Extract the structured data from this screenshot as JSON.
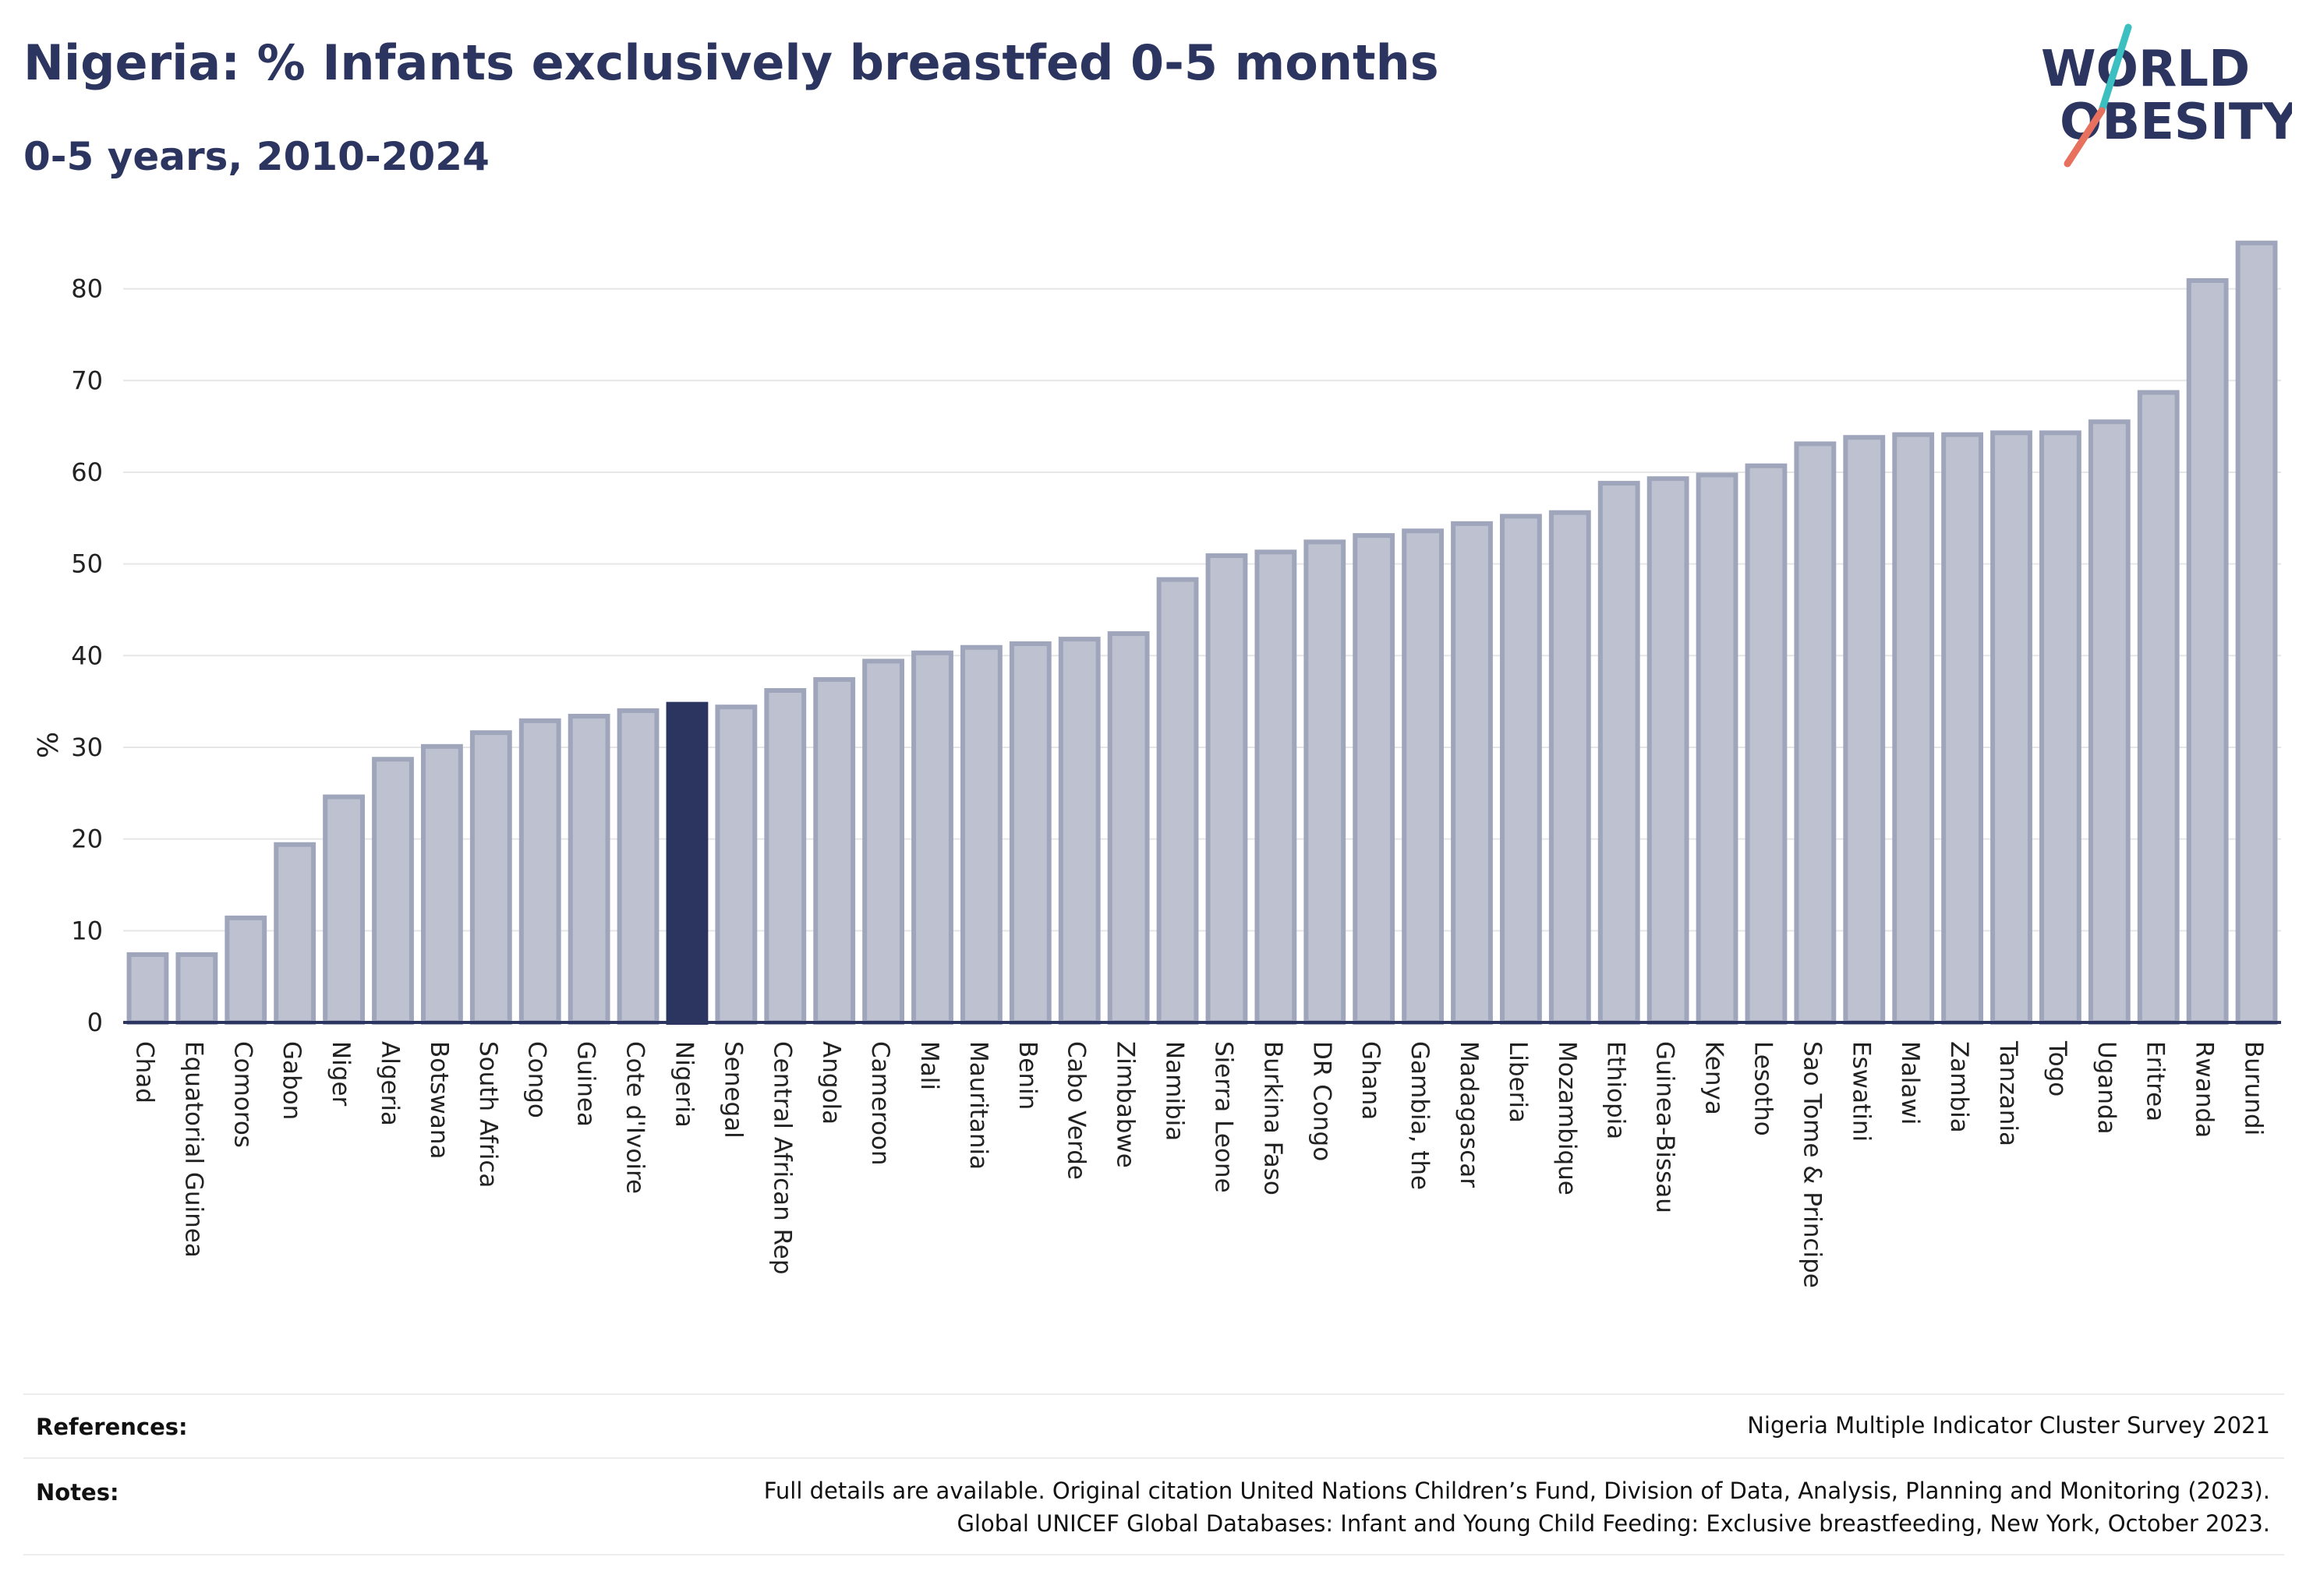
{
  "header": {
    "title": "Nigeria: % Infants exclusively breastfed 0-5 months",
    "subtitle": "0-5 years, 2010-2024"
  },
  "logo": {
    "line1": "WORLD",
    "line2": "OBESITY",
    "colors": {
      "text": "#2b3560",
      "slash_teal": "#3bbfc1",
      "slash_coral": "#e8705f"
    }
  },
  "footer": {
    "references_label": "References:",
    "references_value": "Nigeria Multiple Indicator Cluster Survey 2021",
    "notes_label": "Notes:",
    "notes_line1": "Full details are available. Original citation United Nations Children’s Fund, Division of Data, Analysis, Planning and Monitoring (2023).",
    "notes_line2": "Global UNICEF Global Databases: Infant and Young Child Feeding: Exclusive breastfeeding, New York, October 2023."
  },
  "colors": {
    "bar_fill": "#bec2d0",
    "bar_stroke": "#9fa5ba",
    "highlight": "#2b3560",
    "grid": "#e6e6e6",
    "axis": "#2b3560"
  },
  "chart_data": {
    "type": "bar",
    "ylabel": "%",
    "xlabel": "",
    "ylim": [
      0,
      86
    ],
    "yticks": [
      0,
      10,
      20,
      30,
      40,
      50,
      60,
      70,
      80
    ],
    "grid": true,
    "highlight_category": "Nigeria",
    "categories": [
      "Chad",
      "Equatorial Guinea",
      "Comoros",
      "Gabon",
      "Niger",
      "Algeria",
      "Botswana",
      "South Africa",
      "Congo",
      "Guinea",
      "Cote d'Ivoire",
      "Nigeria",
      "Senegal",
      "Central African Rep",
      "Angola",
      "Cameroon",
      "Mali",
      "Mauritania",
      "Benin",
      "Cabo Verde",
      "Zimbabwe",
      "Namibia",
      "Sierra Leone",
      "Burkina Faso",
      "DR Congo",
      "Ghana",
      "Gambia, the",
      "Madagascar",
      "Liberia",
      "Mozambique",
      "Ethiopia",
      "Guinea-Bissau",
      "Kenya",
      "Lesotho",
      "Sao Tome & Principe",
      "Eswatini",
      "Malawi",
      "Zambia",
      "Tanzania",
      "Togo",
      "Uganda",
      "Eritrea",
      "Rwanda",
      "Burundi"
    ],
    "values": [
      7.4,
      7.4,
      11.4,
      19.4,
      24.6,
      28.7,
      30.1,
      31.6,
      32.9,
      33.4,
      34.0,
      34.7,
      34.4,
      36.2,
      37.4,
      39.4,
      40.3,
      40.9,
      41.3,
      41.8,
      42.4,
      48.3,
      50.9,
      51.3,
      52.4,
      53.1,
      53.6,
      54.4,
      55.2,
      55.6,
      58.8,
      59.3,
      59.7,
      60.7,
      63.1,
      63.8,
      64.1,
      64.1,
      64.3,
      64.3,
      65.5,
      68.7,
      80.9,
      85.0
    ]
  }
}
